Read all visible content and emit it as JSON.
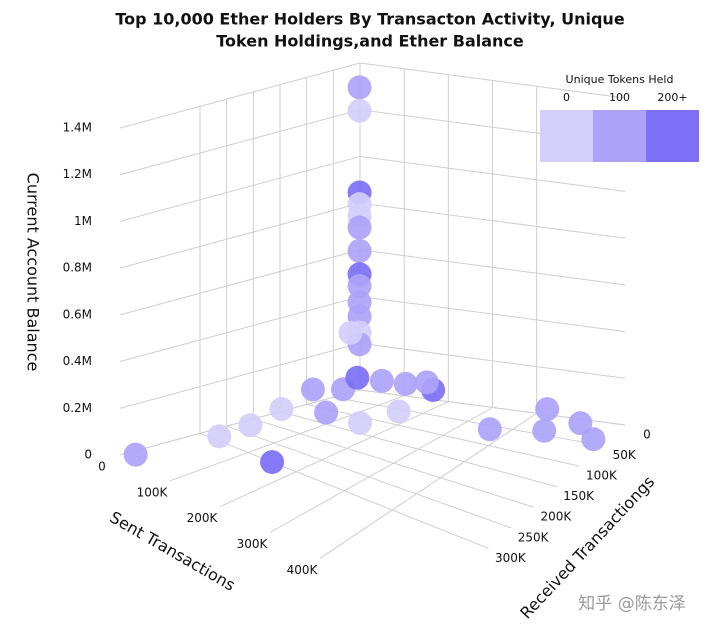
{
  "chart_data": {
    "type": "scatter3d",
    "title": [
      "Top 10,000 Ether Holders By Transacton Activity, Unique",
      "Token Holdings,and Ether Balance"
    ],
    "x_label": "Sent Transactions",
    "y_label": "Received Transactiongs",
    "z_label": "Current Account Balance",
    "xlim": [
      0,
      600000
    ],
    "xticks": [
      0,
      {
        "value": 100000,
        "label": "100K"
      },
      {
        "value": 200000,
        "label": "200K"
      },
      {
        "value": 300000,
        "label": "300K"
      },
      {
        "value": 400000,
        "label": "400K"
      }
    ],
    "ylim": [
      0,
      450000
    ],
    "yticks": [
      0,
      {
        "value": 50000,
        "label": "50K"
      },
      {
        "value": 100000,
        "label": "100K"
      },
      {
        "value": 150000,
        "label": "150K"
      },
      {
        "value": 200000,
        "label": "200K"
      },
      {
        "value": 250000,
        "label": "250K"
      },
      {
        "value": 300000,
        "label": "300K"
      }
    ],
    "zlim": [
      0,
      1400000
    ],
    "zticks": [
      0,
      {
        "value": 200000,
        "label": "0.2M"
      },
      {
        "value": 400000,
        "label": "0.4M"
      },
      {
        "value": 600000,
        "label": "0.6M"
      },
      {
        "value": 800000,
        "label": "0.8M"
      },
      {
        "value": 1000000,
        "label": "1M"
      },
      {
        "value": 1200000,
        "label": "1.2M"
      },
      {
        "value": 1400000,
        "label": "1.4M"
      }
    ],
    "x": [
      5000,
      5000,
      5000,
      5000,
      5000,
      5000,
      5000,
      5000,
      5000,
      5000,
      5000,
      5000,
      5000,
      520000,
      440000,
      460000,
      360000,
      570000,
      10000,
      40000,
      50000,
      60000,
      150000,
      80000,
      100000,
      120000,
      150000,
      200000,
      60000,
      100000,
      180000,
      140000,
      50000,
      220000
    ],
    "y": [
      5000,
      5000,
      5000,
      5000,
      5000,
      5000,
      5000,
      5000,
      5000,
      5000,
      5000,
      5000,
      5000,
      20000,
      15000,
      40000,
      60000,
      40000,
      430000,
      300000,
      250000,
      200000,
      300000,
      100000,
      90000,
      60000,
      40000,
      30000,
      140000,
      150000,
      80000,
      120000,
      60000,
      60000
    ],
    "z": [
      1300000,
      1200000,
      850000,
      800000,
      750000,
      700000,
      600000,
      500000,
      450000,
      380000,
      320000,
      250000,
      200000,
      20000,
      50000,
      0,
      0,
      0,
      0,
      20000,
      40000,
      80000,
      0,
      100000,
      150000,
      120000,
      100000,
      80000,
      120000,
      50000,
      30000,
      0,
      300000,
      150000
    ],
    "tokens": [
      100,
      0,
      200,
      0,
      0,
      100,
      100,
      200,
      100,
      100,
      100,
      0,
      100,
      100,
      100,
      100,
      100,
      100,
      100,
      0,
      0,
      0,
      200,
      100,
      200,
      100,
      100,
      200,
      100,
      100,
      0,
      0,
      0,
      100
    ],
    "colorbar": {
      "title": "Unique Tokens Held",
      "ticks": [
        0,
        100,
        {
          "value": 200,
          "label": "200+"
        }
      ],
      "colors": [
        "#d3cefa",
        "#aca3f8",
        "#7d6ff6"
      ]
    }
  },
  "watermark": "知乎 @陈东泽"
}
